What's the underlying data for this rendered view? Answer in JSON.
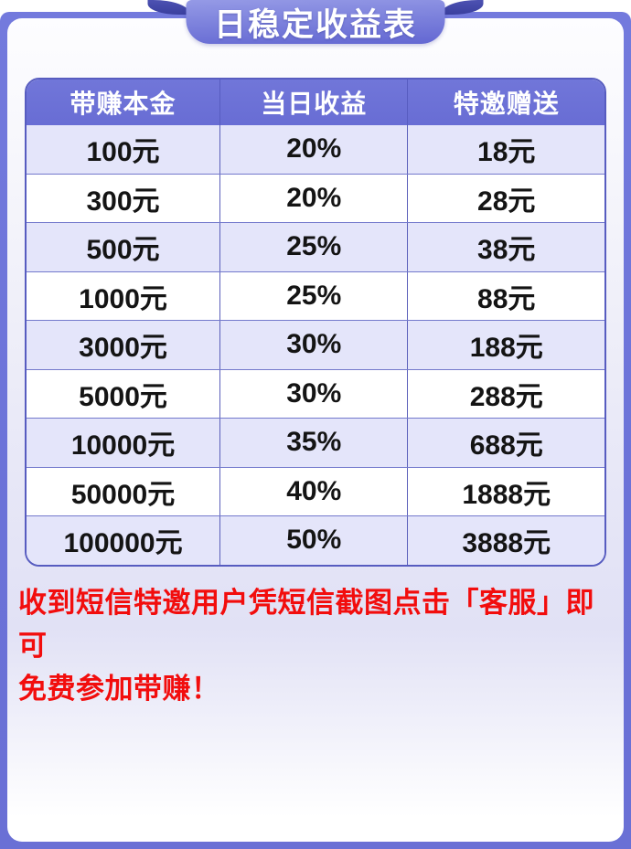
{
  "banner": {
    "title": "日稳定收益表"
  },
  "table": {
    "headers": [
      "带赚本金",
      "当日收益",
      "特邀赠送"
    ],
    "rows": [
      [
        "100元",
        "20%",
        "18元"
      ],
      [
        "300元",
        "20%",
        "28元"
      ],
      [
        "500元",
        "25%",
        "38元"
      ],
      [
        "1000元",
        "25%",
        "88元"
      ],
      [
        "3000元",
        "30%",
        "188元"
      ],
      [
        "5000元",
        "30%",
        "288元"
      ],
      [
        "10000元",
        "35%",
        "688元"
      ],
      [
        "50000元",
        "40%",
        "1888元"
      ],
      [
        "100000元",
        "50%",
        "3888元"
      ]
    ]
  },
  "notice": {
    "lines": [
      "收到短信特邀用户凭短信截图点击「客服」即可",
      "免费参加带赚！"
    ],
    "full_text": "收到短信特邀用户凭短信截图点击「客服」即可免费参加带赚！"
  },
  "colors": {
    "frame_purple": "#6b72d8",
    "banner_fold_navy": "#3a3f9e",
    "header_purple": "#6c71d7",
    "row_lavender": "#e4e5fa",
    "table_border": "#575cc0",
    "notice_red": "#f20d0d"
  }
}
